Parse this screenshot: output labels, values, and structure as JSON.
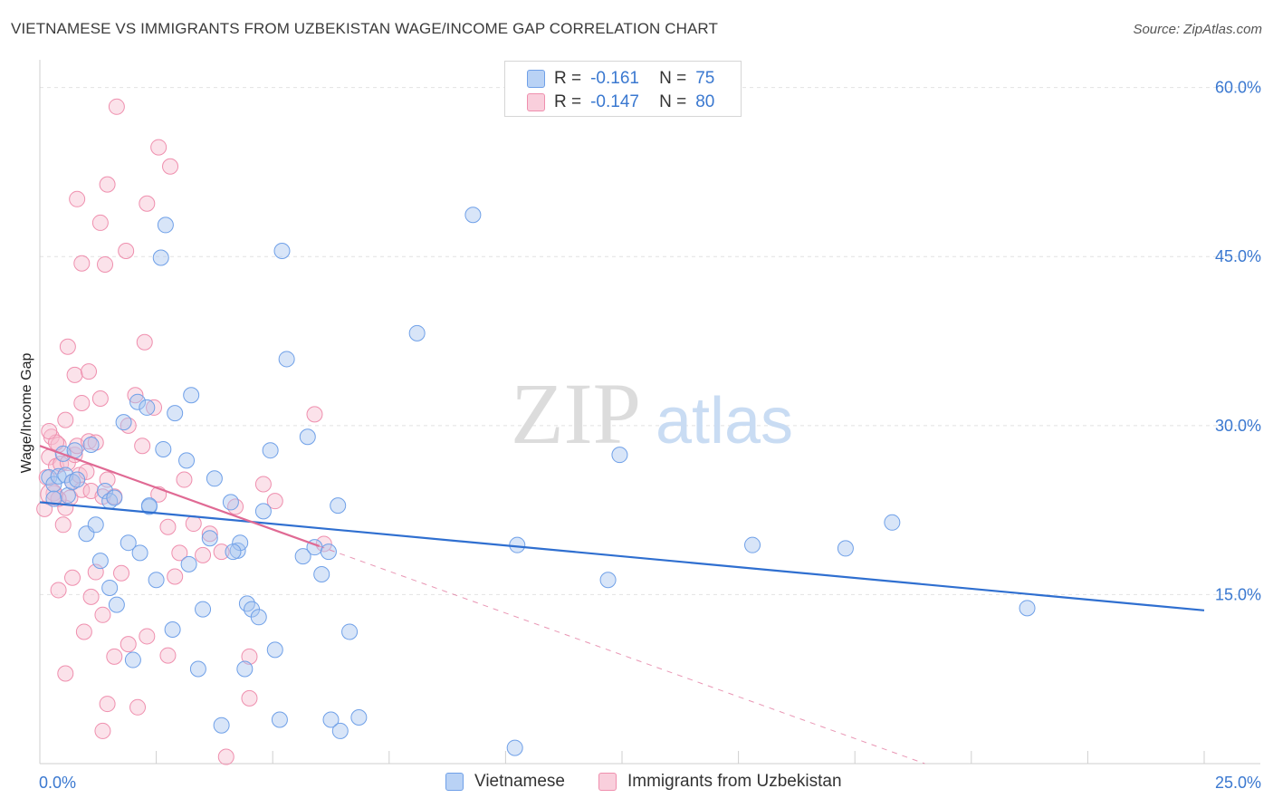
{
  "header": {
    "title": "VIETNAMESE VS IMMIGRANTS FROM UZBEKISTAN WAGE/INCOME GAP CORRELATION CHART",
    "source": "Source: ZipAtlas.com"
  },
  "watermark": {
    "zip": "ZIP",
    "atlas": "atlas"
  },
  "legend": {
    "rows": [
      {
        "r_label": "R =",
        "r_value": "-0.161",
        "n_label": "N =",
        "n_value": "75",
        "color": "#6fa0e8"
      },
      {
        "r_label": "R =",
        "r_value": "-0.147",
        "n_label": "N =",
        "n_value": "80",
        "color": "#ef8fae"
      }
    ]
  },
  "bottom_legend": {
    "series1": "Vietnamese",
    "series2": "Immigrants from Uzbekistan"
  },
  "colors": {
    "blue_fill": "#a9c6f0",
    "blue_stroke": "#6fa0e8",
    "blue_line": "#2f6fd0",
    "pink_fill": "#f6bfd0",
    "pink_stroke": "#ef8fae",
    "pink_line": "#e06a94",
    "tick": "#3a78d0"
  },
  "chart_data": {
    "type": "scatter",
    "title": "VIETNAMESE VS IMMIGRANTS FROM UZBEKISTAN WAGE/INCOME GAP CORRELATION CHART",
    "xlabel": "",
    "ylabel": "Wage/Income Gap",
    "xlim": [
      0,
      25
    ],
    "ylim": [
      0,
      61.5
    ],
    "x_ticks": [
      {
        "value": 0,
        "label": "0.0%"
      },
      {
        "value": 25,
        "label": "25.0%"
      }
    ],
    "y_ticks": [
      {
        "value": 15,
        "label": "15.0%"
      },
      {
        "value": 30,
        "label": "30.0%"
      },
      {
        "value": 45,
        "label": "45.0%"
      },
      {
        "value": 60,
        "label": "60.0%"
      }
    ],
    "grid": true,
    "series": [
      {
        "name": "Vietnamese",
        "points": [
          [
            0.2,
            25.4
          ],
          [
            0.3,
            24.8
          ],
          [
            0.4,
            25.5
          ],
          [
            0.5,
            27.5
          ],
          [
            0.55,
            25.6
          ],
          [
            0.6,
            23.8
          ],
          [
            0.7,
            25.0
          ],
          [
            0.75,
            27.8
          ],
          [
            0.8,
            25.2
          ],
          [
            1.0,
            20.4
          ],
          [
            1.1,
            28.3
          ],
          [
            1.2,
            21.2
          ],
          [
            1.3,
            18.0
          ],
          [
            1.4,
            24.2
          ],
          [
            1.5,
            23.3
          ],
          [
            1.6,
            23.6
          ],
          [
            1.65,
            14.1
          ],
          [
            1.8,
            30.3
          ],
          [
            1.9,
            19.6
          ],
          [
            2.0,
            9.2
          ],
          [
            2.1,
            32.1
          ],
          [
            2.15,
            18.7
          ],
          [
            2.3,
            31.6
          ],
          [
            2.35,
            22.8
          ],
          [
            2.5,
            16.3
          ],
          [
            2.6,
            44.9
          ],
          [
            2.65,
            27.9
          ],
          [
            2.7,
            47.8
          ],
          [
            2.85,
            11.9
          ],
          [
            2.9,
            31.1
          ],
          [
            3.15,
            26.9
          ],
          [
            3.2,
            17.7
          ],
          [
            3.25,
            32.7
          ],
          [
            3.4,
            8.4
          ],
          [
            3.5,
            13.7
          ],
          [
            3.65,
            20.0
          ],
          [
            3.75,
            25.3
          ],
          [
            3.9,
            3.4
          ],
          [
            4.1,
            23.2
          ],
          [
            4.25,
            18.9
          ],
          [
            4.3,
            19.6
          ],
          [
            4.4,
            8.4
          ],
          [
            4.45,
            14.2
          ],
          [
            4.55,
            13.7
          ],
          [
            4.7,
            13.0
          ],
          [
            4.8,
            22.4
          ],
          [
            4.95,
            27.8
          ],
          [
            5.05,
            10.1
          ],
          [
            5.15,
            3.9
          ],
          [
            5.2,
            45.5
          ],
          [
            5.3,
            35.9
          ],
          [
            5.65,
            18.4
          ],
          [
            5.75,
            29.0
          ],
          [
            5.9,
            19.2
          ],
          [
            6.05,
            16.8
          ],
          [
            6.2,
            18.8
          ],
          [
            6.25,
            3.9
          ],
          [
            6.4,
            22.9
          ],
          [
            6.45,
            2.9
          ],
          [
            6.65,
            11.7
          ],
          [
            6.85,
            4.1
          ],
          [
            1.5,
            15.6
          ],
          [
            2.35,
            22.9
          ],
          [
            4.15,
            18.8
          ],
          [
            8.1,
            38.2
          ],
          [
            9.3,
            48.7
          ],
          [
            10.2,
            1.4
          ],
          [
            10.25,
            19.4
          ],
          [
            12.2,
            16.3
          ],
          [
            12.45,
            27.4
          ],
          [
            15.3,
            19.4
          ],
          [
            17.3,
            19.1
          ],
          [
            18.3,
            21.4
          ],
          [
            21.2,
            13.8
          ],
          [
            0.3,
            23.5
          ]
        ],
        "regression": {
          "x": [
            0,
            25
          ],
          "y": [
            23.2,
            13.6
          ]
        }
      },
      {
        "name": "Immigrants from Uzbekistan",
        "points": [
          [
            0.1,
            22.6
          ],
          [
            0.15,
            25.4
          ],
          [
            0.2,
            27.2
          ],
          [
            0.25,
            29.0
          ],
          [
            0.3,
            24.0
          ],
          [
            0.35,
            26.4
          ],
          [
            0.4,
            28.3
          ],
          [
            0.45,
            26.6
          ],
          [
            0.5,
            21.2
          ],
          [
            0.55,
            22.7
          ],
          [
            0.6,
            26.7
          ],
          [
            0.65,
            23.6
          ],
          [
            0.7,
            25.0
          ],
          [
            0.75,
            27.4
          ],
          [
            0.8,
            28.2
          ],
          [
            0.85,
            25.6
          ],
          [
            0.9,
            24.3
          ],
          [
            1.0,
            25.9
          ],
          [
            1.05,
            28.6
          ],
          [
            1.1,
            24.2
          ],
          [
            1.2,
            28.5
          ],
          [
            1.3,
            32.4
          ],
          [
            1.35,
            23.7
          ],
          [
            1.45,
            25.2
          ],
          [
            0.55,
            30.5
          ],
          [
            0.6,
            37.0
          ],
          [
            0.75,
            34.5
          ],
          [
            0.9,
            32.0
          ],
          [
            1.05,
            34.8
          ],
          [
            0.9,
            44.4
          ],
          [
            1.3,
            48.0
          ],
          [
            1.4,
            44.3
          ],
          [
            0.8,
            50.1
          ],
          [
            1.45,
            51.4
          ],
          [
            1.65,
            58.3
          ],
          [
            1.85,
            45.5
          ],
          [
            2.3,
            49.7
          ],
          [
            2.55,
            54.7
          ],
          [
            2.8,
            53.0
          ],
          [
            1.9,
            30.0
          ],
          [
            2.05,
            32.7
          ],
          [
            2.2,
            28.2
          ],
          [
            2.45,
            31.6
          ],
          [
            2.55,
            23.9
          ],
          [
            2.75,
            21.0
          ],
          [
            2.9,
            16.6
          ],
          [
            0.4,
            15.4
          ],
          [
            0.7,
            16.5
          ],
          [
            0.95,
            11.7
          ],
          [
            1.1,
            14.8
          ],
          [
            1.2,
            17.0
          ],
          [
            0.55,
            8.0
          ],
          [
            1.35,
            13.2
          ],
          [
            1.6,
            9.5
          ],
          [
            1.75,
            16.9
          ],
          [
            1.9,
            10.6
          ],
          [
            2.1,
            5.0
          ],
          [
            2.3,
            11.3
          ],
          [
            2.75,
            9.6
          ],
          [
            1.45,
            5.3
          ],
          [
            1.35,
            2.9
          ],
          [
            3.0,
            18.7
          ],
          [
            3.1,
            25.2
          ],
          [
            3.3,
            21.3
          ],
          [
            3.5,
            18.5
          ],
          [
            3.65,
            20.4
          ],
          [
            3.9,
            18.8
          ],
          [
            4.0,
            0.6
          ],
          [
            4.2,
            22.8
          ],
          [
            4.5,
            9.5
          ],
          [
            4.5,
            5.8
          ],
          [
            4.8,
            24.8
          ],
          [
            5.05,
            23.3
          ],
          [
            5.9,
            31.0
          ],
          [
            6.1,
            19.5
          ],
          [
            2.25,
            37.4
          ],
          [
            0.4,
            23.5
          ],
          [
            0.35,
            28.5
          ],
          [
            0.2,
            29.5
          ],
          [
            1.6,
            23.7
          ]
        ],
        "regression": {
          "x": [
            0,
            6.0
          ],
          "y": [
            28.2,
            19.3
          ],
          "dashed_x": [
            6.0,
            19.0
          ],
          "dashed_y": [
            19.3,
            0.0
          ]
        }
      }
    ]
  }
}
